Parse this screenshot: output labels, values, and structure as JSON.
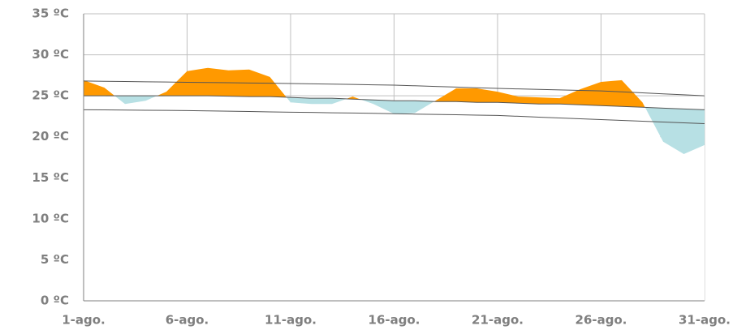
{
  "chart_data": {
    "type": "area",
    "categories": [
      "1-ago.",
      null,
      null,
      null,
      null,
      "6-ago.",
      null,
      null,
      null,
      null,
      "11-ago.",
      null,
      null,
      null,
      null,
      "16-ago.",
      null,
      null,
      null,
      null,
      "21-ago.",
      null,
      null,
      null,
      null,
      "26-ago.",
      null,
      null,
      null,
      null,
      "31-ago."
    ],
    "series": [
      {
        "color": "#ff9900",
        "below_color": "#b7e0e4",
        "values": [
          26.9,
          26.0,
          24.0,
          24.4,
          25.5,
          28.0,
          28.4,
          28.1,
          28.2,
          27.3,
          24.2,
          24.0,
          24.0,
          24.9,
          24.0,
          22.8,
          22.9,
          24.4,
          25.9,
          25.9,
          25.5,
          24.9,
          24.8,
          24.7,
          25.8,
          26.7,
          26.9,
          24.2,
          19.4,
          17.9,
          19.0
        ]
      },
      {
        "color": "#555555",
        "values": [
          26.8,
          26.77,
          26.74,
          26.71,
          26.68,
          26.65,
          26.62,
          26.59,
          26.56,
          26.53,
          26.5,
          26.46,
          26.42,
          26.38,
          26.34,
          26.3,
          26.22,
          26.14,
          26.06,
          25.98,
          25.9,
          25.84,
          25.78,
          25.72,
          25.66,
          25.6,
          25.48,
          25.36,
          25.24,
          25.12,
          25.0
        ]
      },
      {
        "color": "#555555",
        "values": [
          25.0,
          25.0,
          25.0,
          25.0,
          25.0,
          25.0,
          25.0,
          24.95,
          24.9,
          24.9,
          24.8,
          24.7,
          24.7,
          24.6,
          24.5,
          24.4,
          24.4,
          24.3,
          24.3,
          24.2,
          24.2,
          24.1,
          24.0,
          24.0,
          23.9,
          23.8,
          23.7,
          23.6,
          23.5,
          23.4,
          23.3
        ]
      },
      {
        "color": "#555555",
        "values": [
          23.3,
          23.28,
          23.26,
          23.24,
          23.22,
          23.2,
          23.16,
          23.12,
          23.08,
          23.04,
          23.0,
          22.97,
          22.93,
          22.9,
          22.86,
          22.81,
          22.77,
          22.73,
          22.69,
          22.64,
          22.6,
          22.5,
          22.4,
          22.3,
          22.2,
          22.1,
          22.0,
          21.9,
          21.8,
          21.7,
          21.6
        ]
      }
    ],
    "ylim": [
      0,
      35
    ],
    "yticks": [
      {
        "value": 0,
        "label": "0 ºC"
      },
      {
        "value": 5,
        "label": "5 ºC"
      },
      {
        "value": 10,
        "label": "10 ºC"
      },
      {
        "value": 15,
        "label": "15 ºC"
      },
      {
        "value": 20,
        "label": "20 ºC"
      },
      {
        "value": 25,
        "label": "25 ºC"
      },
      {
        "value": 30,
        "label": "30 ºC"
      },
      {
        "value": 35,
        "label": "35 ºC"
      }
    ],
    "grid": true
  }
}
